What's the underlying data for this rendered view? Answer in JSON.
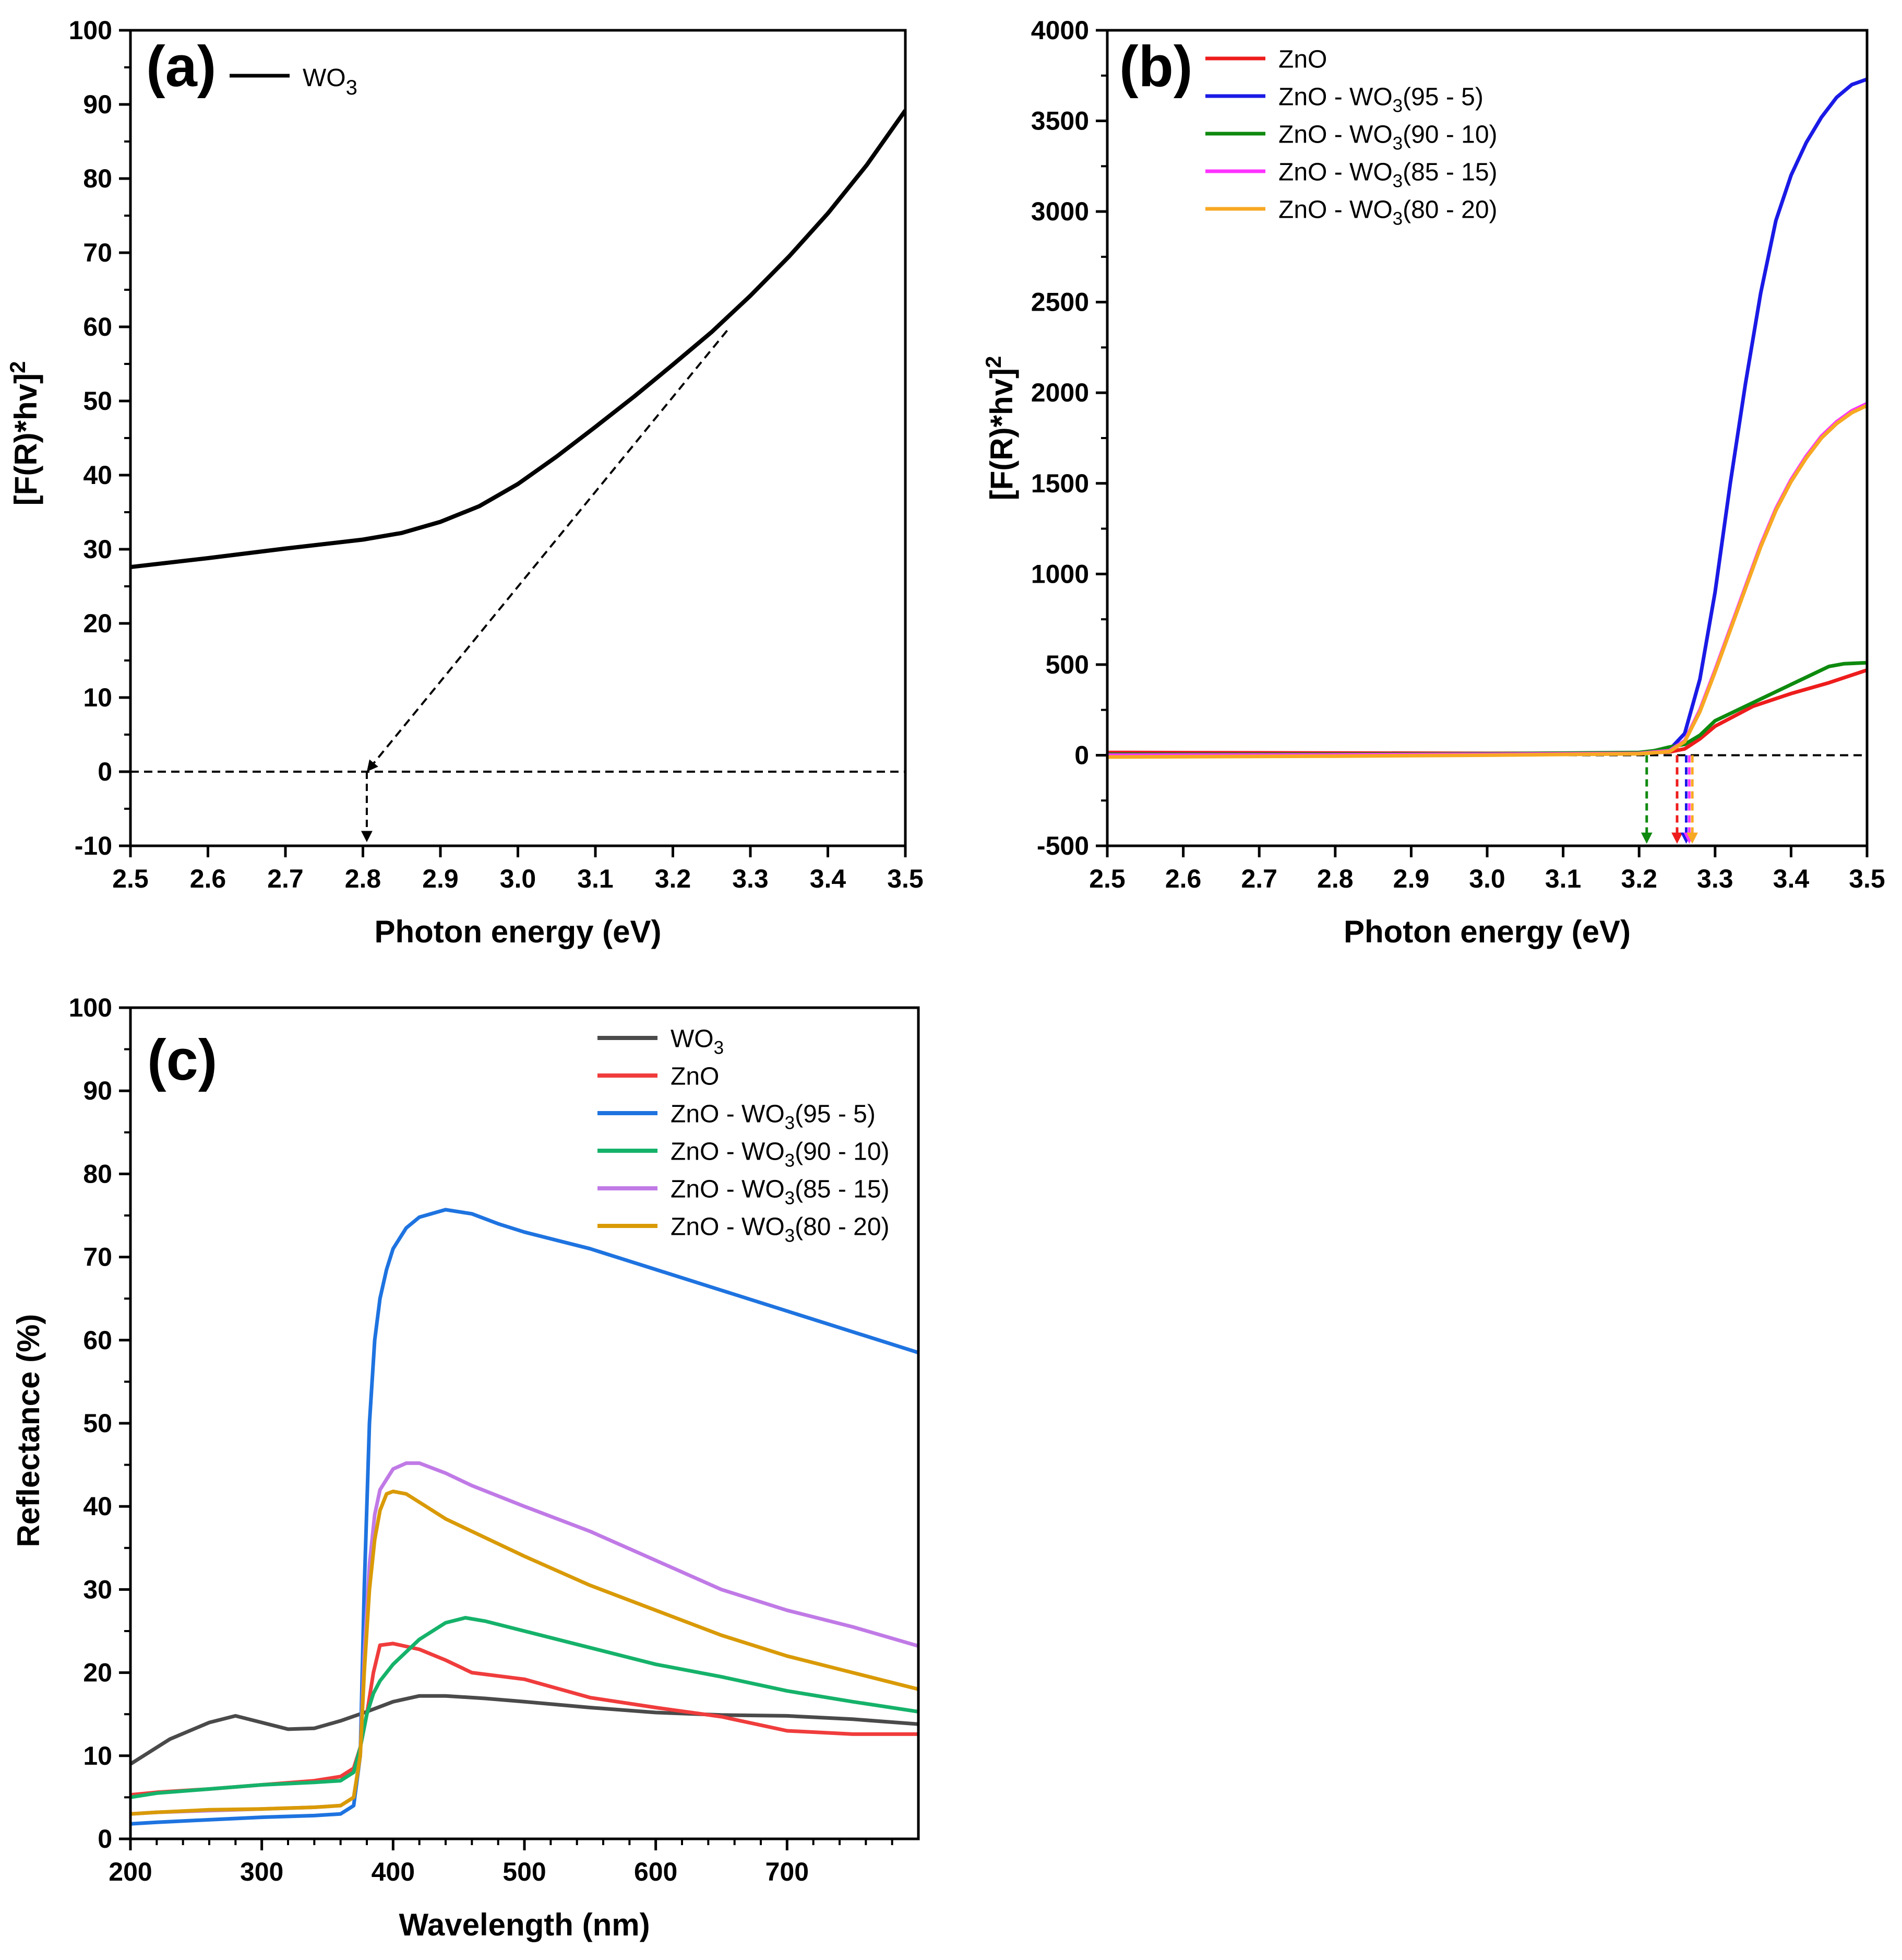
{
  "colors": {
    "WO3": "#000000",
    "ZnO": "#ee1c1c",
    "ZW95": "#1a1ae6",
    "ZW90": "#0e8a0e",
    "ZW85": "#ff33ff",
    "ZW80": "#f7a823",
    "cWO3": "#4a4a4a",
    "cZnO": "#f03c3c",
    "cZW95": "#1e73e0",
    "cZW90": "#15b26a",
    "cZW85": "#c07ae6",
    "cZW80": "#d99a06"
  },
  "chart_data": [
    {
      "id": "a",
      "type": "line",
      "panel_label": "(a)",
      "xlabel": "Photon energy (eV)",
      "ylabel_main": "[F(R)*hv]",
      "ylabel_sup": "2",
      "xlim": [
        2.5,
        3.5
      ],
      "ylim": [
        -10,
        100
      ],
      "xticks": [
        "2.5",
        "2.6",
        "2.7",
        "2.8",
        "2.9",
        "3.0",
        "3.1",
        "3.2",
        "3.3",
        "3.4",
        "3.5"
      ],
      "yticks": [
        "-10",
        "0",
        "10",
        "20",
        "30",
        "40",
        "50",
        "60",
        "70",
        "80",
        "90",
        "100"
      ],
      "legend": [
        {
          "main": "WO",
          "sub": "3",
          "suffix": "",
          "color_key": "WO3"
        }
      ],
      "series": [
        {
          "name": "WO3",
          "color_key": "WO3",
          "x": [
            2.5,
            2.6,
            2.7,
            2.8,
            2.85,
            2.9,
            2.95,
            3.0,
            3.05,
            3.1,
            3.15,
            3.2,
            3.25,
            3.3,
            3.35,
            3.4,
            3.45,
            3.5
          ],
          "y": [
            27.6,
            28.8,
            30.1,
            31.3,
            32.2,
            33.7,
            35.8,
            38.8,
            42.5,
            46.5,
            50.6,
            54.9,
            59.3,
            64.2,
            69.5,
            75.3,
            81.8,
            89.2
          ]
        }
      ],
      "annotations": {
        "baseline_y": 0,
        "tangent": {
          "x1": 3.27,
          "y1": 59.5,
          "x2": 2.805,
          "y2": 0
        },
        "drop": {
          "x": 2.805,
          "y1": 0,
          "y2": -9.5
        }
      }
    },
    {
      "id": "b",
      "type": "line",
      "panel_label": "(b)",
      "xlabel": "Photon energy (eV)",
      "ylabel_main": "[F(R)*hv]",
      "ylabel_sup": "2",
      "xlim": [
        2.5,
        3.5
      ],
      "ylim": [
        -500,
        4000
      ],
      "xticks": [
        "2.5",
        "2.6",
        "2.7",
        "2.8",
        "2.9",
        "3.0",
        "3.1",
        "3.2",
        "3.3",
        "3.4",
        "3.5"
      ],
      "yticks": [
        "-500",
        "0",
        "500",
        "1000",
        "1500",
        "2000",
        "2500",
        "3000",
        "3500",
        "4000"
      ],
      "legend": [
        {
          "main": "ZnO",
          "sub": "",
          "suffix": "",
          "color_key": "ZnO"
        },
        {
          "main": "ZnO - WO",
          "sub": "3",
          "suffix": "(95 - 5)",
          "color_key": "ZW95"
        },
        {
          "main": "ZnO - WO",
          "sub": "3",
          "suffix": "(90 - 10)",
          "color_key": "ZW90"
        },
        {
          "main": "ZnO - WO",
          "sub": "3",
          "suffix": "(85 - 15)",
          "color_key": "ZW85"
        },
        {
          "main": "ZnO - WO",
          "sub": "3",
          "suffix": "(80 - 20)",
          "color_key": "ZW80"
        }
      ],
      "series": [
        {
          "name": "ZnO",
          "color_key": "ZnO",
          "x": [
            2.5,
            2.8,
            3.0,
            3.2,
            3.24,
            3.26,
            3.28,
            3.3,
            3.35,
            3.4,
            3.45,
            3.5
          ],
          "y": [
            15,
            12,
            10,
            12,
            18,
            35,
            90,
            160,
            270,
            340,
            400,
            470
          ]
        },
        {
          "name": "ZnO - WO3(95 - 5)",
          "color_key": "ZW95",
          "x": [
            2.5,
            2.8,
            3.0,
            3.2,
            3.24,
            3.26,
            3.28,
            3.3,
            3.32,
            3.34,
            3.36,
            3.38,
            3.4,
            3.42,
            3.44,
            3.46,
            3.48,
            3.5
          ],
          "y": [
            5,
            5,
            8,
            12,
            30,
            120,
            420,
            900,
            1500,
            2050,
            2550,
            2950,
            3200,
            3380,
            3520,
            3630,
            3700,
            3730
          ]
        },
        {
          "name": "ZnO - WO3(90 - 10)",
          "color_key": "ZW90",
          "x": [
            2.5,
            2.8,
            3.0,
            3.2,
            3.22,
            3.24,
            3.26,
            3.28,
            3.3,
            3.33,
            3.36,
            3.39,
            3.42,
            3.45,
            3.47,
            3.5
          ],
          "y": [
            5,
            6,
            8,
            15,
            25,
            45,
            60,
            110,
            190,
            250,
            310,
            370,
            430,
            490,
            505,
            510
          ]
        },
        {
          "name": "ZnO - WO3(85 - 15)",
          "color_key": "ZW85",
          "x": [
            2.5,
            2.8,
            3.0,
            3.2,
            3.24,
            3.26,
            3.28,
            3.3,
            3.32,
            3.34,
            3.36,
            3.38,
            3.4,
            3.42,
            3.44,
            3.46,
            3.48,
            3.5
          ],
          "y": [
            0,
            2,
            5,
            10,
            25,
            80,
            250,
            470,
            700,
            930,
            1160,
            1360,
            1520,
            1650,
            1760,
            1840,
            1900,
            1940
          ]
        },
        {
          "name": "ZnO - WO3(80 - 20)",
          "color_key": "ZW80",
          "x": [
            2.5,
            2.8,
            3.0,
            3.2,
            3.24,
            3.26,
            3.28,
            3.3,
            3.32,
            3.34,
            3.36,
            3.38,
            3.4,
            3.42,
            3.44,
            3.46,
            3.48,
            3.5
          ],
          "y": [
            -10,
            -5,
            0,
            8,
            20,
            75,
            240,
            460,
            690,
            920,
            1150,
            1350,
            1510,
            1640,
            1750,
            1830,
            1890,
            1930
          ]
        }
      ],
      "annotations": {
        "baseline_y": 0,
        "drops": [
          {
            "x": 3.21,
            "color_key": "ZW90"
          },
          {
            "x": 3.25,
            "color_key": "ZnO"
          },
          {
            "x": 3.262,
            "color_key": "ZW95"
          },
          {
            "x": 3.266,
            "color_key": "ZW85"
          },
          {
            "x": 3.27,
            "color_key": "ZW80"
          }
        ]
      }
    },
    {
      "id": "c",
      "type": "line",
      "panel_label": "(c)",
      "xlabel": "Wavelength (nm)",
      "ylabel_main": "Reflectance (%)",
      "ylabel_sup": "",
      "xlim": [
        200,
        800
      ],
      "ylim": [
        0,
        100
      ],
      "xticks": [
        "200",
        "300",
        "400",
        "500",
        "600",
        "700"
      ],
      "xtick_values": [
        200,
        300,
        400,
        500,
        600,
        700
      ],
      "yticks": [
        "0",
        "10",
        "20",
        "30",
        "40",
        "50",
        "60",
        "70",
        "80",
        "90",
        "100"
      ],
      "legend": [
        {
          "main": "WO",
          "sub": "3",
          "suffix": "",
          "color_key": "cWO3"
        },
        {
          "main": "ZnO",
          "sub": "",
          "suffix": "",
          "color_key": "cZnO"
        },
        {
          "main": "ZnO - WO",
          "sub": "3",
          "suffix": "(95 - 5)",
          "color_key": "cZW95"
        },
        {
          "main": "ZnO - WO",
          "sub": "3",
          "suffix": "(90 - 10)",
          "color_key": "cZW90"
        },
        {
          "main": "ZnO - WO",
          "sub": "3",
          "suffix": "(85 - 15)",
          "color_key": "cZW85"
        },
        {
          "main": "ZnO - WO",
          "sub": "3",
          "suffix": "(80 - 20)",
          "color_key": "cZW80"
        }
      ],
      "series": [
        {
          "name": "WO3",
          "color_key": "cWO3",
          "x": [
            200,
            210,
            230,
            260,
            280,
            300,
            320,
            340,
            360,
            380,
            400,
            420,
            440,
            470,
            500,
            550,
            600,
            650,
            700,
            750,
            800
          ],
          "y": [
            9.0,
            10.0,
            12.0,
            14.0,
            14.8,
            14.0,
            13.2,
            13.3,
            14.2,
            15.3,
            16.5,
            17.2,
            17.2,
            16.9,
            16.5,
            15.8,
            15.2,
            14.9,
            14.8,
            14.4,
            13.8
          ]
        },
        {
          "name": "ZnO",
          "color_key": "cZnO",
          "x": [
            200,
            220,
            260,
            300,
            340,
            360,
            370,
            375,
            380,
            385,
            390,
            400,
            420,
            440,
            460,
            500,
            550,
            600,
            650,
            700,
            750,
            800
          ],
          "y": [
            5.3,
            5.6,
            6.0,
            6.5,
            7.0,
            7.5,
            8.5,
            11.0,
            15.0,
            20.0,
            23.3,
            23.5,
            22.8,
            21.5,
            20.0,
            19.2,
            17.0,
            15.8,
            14.7,
            13.0,
            12.6,
            12.6
          ]
        },
        {
          "name": "ZnO - WO3(95 - 5)",
          "color_key": "cZW95",
          "x": [
            200,
            220,
            260,
            300,
            340,
            360,
            370,
            375,
            378,
            382,
            386,
            390,
            395,
            400,
            410,
            420,
            440,
            460,
            480,
            500,
            550,
            600,
            650,
            700,
            750,
            800
          ],
          "y": [
            1.8,
            2.0,
            2.3,
            2.6,
            2.8,
            3.0,
            4.0,
            10.0,
            30.0,
            50.0,
            60.0,
            65.0,
            68.5,
            71.0,
            73.5,
            74.8,
            75.7,
            75.2,
            74.0,
            73.0,
            71.0,
            68.5,
            66.0,
            63.5,
            61.0,
            58.5
          ]
        },
        {
          "name": "ZnO - WO3(90 - 10)",
          "color_key": "cZW90",
          "x": [
            200,
            220,
            260,
            300,
            340,
            360,
            370,
            375,
            380,
            385,
            390,
            400,
            420,
            440,
            455,
            470,
            500,
            550,
            600,
            650,
            700,
            750,
            800
          ],
          "y": [
            5.0,
            5.5,
            6.0,
            6.5,
            6.8,
            7.0,
            8.0,
            11.0,
            15.0,
            17.5,
            19.0,
            21.0,
            24.0,
            26.0,
            26.6,
            26.2,
            25.0,
            23.0,
            21.0,
            19.5,
            17.8,
            16.5,
            15.3
          ]
        },
        {
          "name": "ZnO - WO3(85 - 15)",
          "color_key": "cZW85",
          "x": [
            200,
            220,
            260,
            300,
            340,
            360,
            370,
            375,
            378,
            382,
            386,
            390,
            400,
            410,
            420,
            440,
            460,
            500,
            550,
            600,
            650,
            700,
            750,
            800
          ],
          "y": [
            3.0,
            3.2,
            3.4,
            3.6,
            3.8,
            4.0,
            5.0,
            10.0,
            22.0,
            33.0,
            39.0,
            42.0,
            44.5,
            45.2,
            45.2,
            44.0,
            42.5,
            40.0,
            37.0,
            33.5,
            30.0,
            27.5,
            25.5,
            23.2
          ]
        },
        {
          "name": "ZnO - WO3(80 - 20)",
          "color_key": "cZW80",
          "x": [
            200,
            220,
            260,
            300,
            340,
            360,
            370,
            375,
            378,
            382,
            386,
            390,
            395,
            400,
            410,
            420,
            440,
            460,
            500,
            550,
            600,
            650,
            700,
            750,
            800
          ],
          "y": [
            3.0,
            3.2,
            3.5,
            3.6,
            3.8,
            4.0,
            5.0,
            10.0,
            20.0,
            30.0,
            36.0,
            39.5,
            41.5,
            41.8,
            41.5,
            40.5,
            38.5,
            37.0,
            34.0,
            30.5,
            27.5,
            24.5,
            22.0,
            20.0,
            18.0
          ]
        }
      ]
    }
  ]
}
